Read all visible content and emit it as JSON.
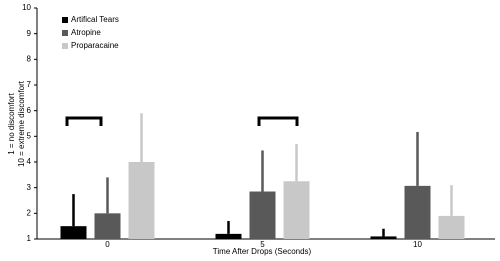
{
  "chart_data": {
    "type": "bar",
    "categories": [
      "0",
      "5",
      "10"
    ],
    "series": [
      {
        "name": "Artifical Tears",
        "color": "#000000",
        "values": [
          1.5,
          1.2,
          1.1
        ],
        "errors": [
          1.25,
          0.5,
          0.3
        ]
      },
      {
        "name": "Atropine",
        "color": "#595959",
        "values": [
          2.0,
          2.85,
          3.07
        ],
        "errors": [
          1.4,
          1.6,
          2.1
        ]
      },
      {
        "name": "Proparacaine",
        "color": "#c8c8c8",
        "values": [
          4.0,
          3.25,
          1.9
        ],
        "errors": [
          1.9,
          1.45,
          1.2
        ]
      }
    ],
    "x_label": "Time After Drops (Seconds)",
    "y_label": [
      "1 = no discomfort",
      "10 = extreme discomfort"
    ],
    "ylim": [
      1,
      10
    ],
    "yticks": [
      1,
      2,
      3,
      4,
      5,
      6,
      7,
      8,
      9,
      10
    ],
    "legend": "top-left"
  }
}
